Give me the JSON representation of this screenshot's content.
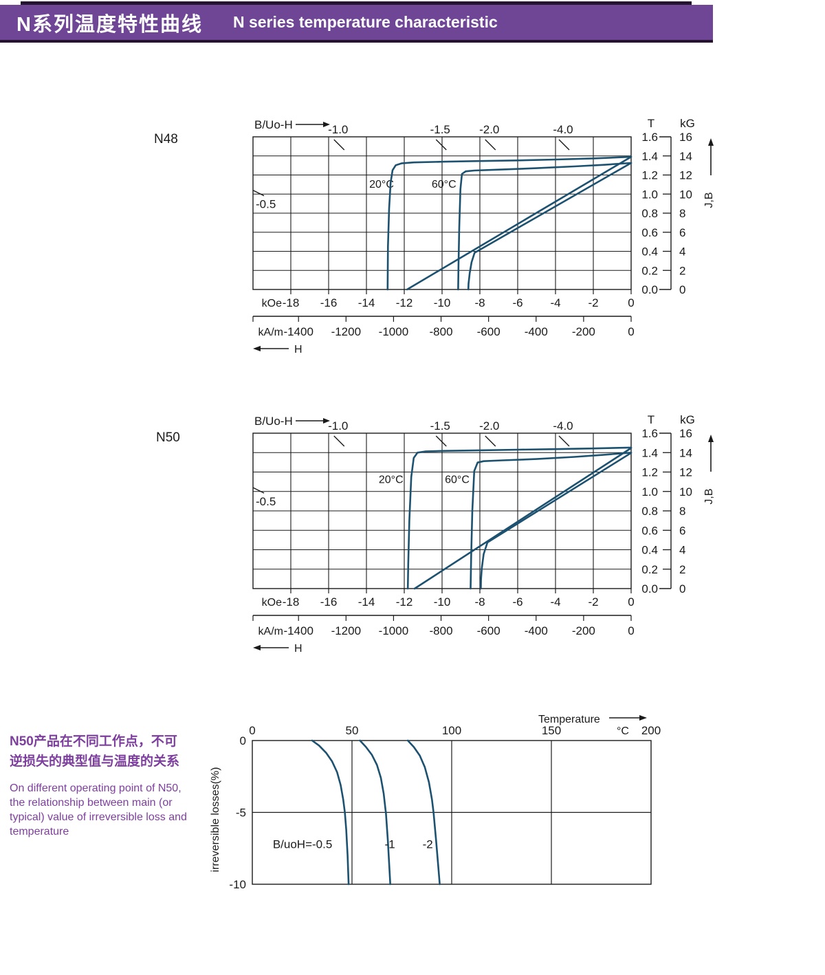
{
  "header": {
    "title_zh": "N系列温度特性曲线",
    "title_en": "N  series temperature characteristic"
  },
  "note": {
    "zh": [
      "N50产品在不同工作点，不可",
      "逆损失的典型值与温度的关系"
    ],
    "en": [
      "On different operating point of N50,",
      "the relationship between main (or",
      "typical) value of irreversible loss and",
      "temperature"
    ]
  },
  "colors": {
    "banner_bg": "#6f4595",
    "banner_edge": "#241430",
    "banner_text": "#ffffff",
    "note_text": "#7d3f9d",
    "curve": "#1c5170",
    "ink": "#1a1a1a"
  },
  "chart_data": [
    {
      "type": "line",
      "product": "N48",
      "title": "B/Uo-H",
      "x_axis": {
        "unit": "kOe",
        "range": [
          -20,
          0
        ],
        "ticks": [
          -18,
          -16,
          -14,
          -12,
          -10,
          -8,
          -6,
          -4,
          -2,
          0
        ]
      },
      "x_axis_secondary": {
        "unit": "kA/m",
        "ticks": [
          -1400,
          -1200,
          -1000,
          -800,
          -600,
          -400,
          -200,
          0
        ],
        "kAm_per_kOe": 79.577
      },
      "x_arrow_label": "H",
      "y_axis_T": {
        "unit": "T",
        "ticks": [
          "1.6",
          "1.4",
          "1.2",
          "1.0",
          "0.8",
          "0.6",
          "0.4",
          "0.2",
          "0.0"
        ],
        "range": [
          0,
          1.6
        ]
      },
      "y_axis_kG": {
        "unit": "kG",
        "ticks": [
          "16",
          "14",
          "12",
          "10",
          "8",
          "6",
          "4",
          "2",
          "0"
        ]
      },
      "y_arrow_label": "J,B",
      "load_line_labels_top": [
        {
          "text": "-1.0",
          "kOe": -15.5
        },
        {
          "text": "-1.5",
          "kOe": -10.1
        },
        {
          "text": "-2.0",
          "kOe": -7.5
        },
        {
          "text": "-4.0",
          "kOe": -3.6
        }
      ],
      "load_line_label_left": {
        "text": "-0.5",
        "T": 1.04
      },
      "temp_labels": [
        {
          "text": "20°C",
          "kOe": -13.2,
          "T": 1.11
        },
        {
          "text": "60°C",
          "kOe": -9.9,
          "T": 1.11
        }
      ],
      "series": [
        {
          "name": "J 20°C",
          "points": [
            [
              0,
              1.39
            ],
            [
              -2,
              1.374
            ],
            [
              -4,
              1.362
            ],
            [
              -6,
              1.353
            ],
            [
              -8,
              1.346
            ],
            [
              -10,
              1.339
            ],
            [
              -11.5,
              1.332
            ],
            [
              -12.15,
              1.322
            ],
            [
              -12.45,
              1.302
            ],
            [
              -12.62,
              1.25
            ],
            [
              -12.72,
              1.12
            ],
            [
              -12.8,
              0.85
            ],
            [
              -12.86,
              0.45
            ],
            [
              -12.88,
              0
            ]
          ]
        },
        {
          "name": "J 60°C",
          "points": [
            [
              0,
              1.326
            ],
            [
              -1.5,
              1.306
            ],
            [
              -3,
              1.29
            ],
            [
              -5,
              1.271
            ],
            [
              -7,
              1.256
            ],
            [
              -8.3,
              1.247
            ],
            [
              -8.75,
              1.238
            ],
            [
              -8.95,
              1.21
            ],
            [
              -9.03,
              1.05
            ],
            [
              -9.09,
              0.65
            ],
            [
              -9.13,
              0.25
            ],
            [
              -9.15,
              0
            ]
          ]
        },
        {
          "name": "B 20°C",
          "points": [
            [
              0,
              1.39
            ],
            [
              -11.85,
              0
            ]
          ]
        },
        {
          "name": "B 60°C",
          "points": [
            [
              0,
              1.326
            ],
            [
              -8.28,
              0.385
            ],
            [
              -8.44,
              0.285
            ],
            [
              -8.54,
              0.17
            ],
            [
              -8.6,
              0.06
            ],
            [
              -8.61,
              0
            ]
          ]
        }
      ]
    },
    {
      "type": "line",
      "product": "N50",
      "title": "B/Uo-H",
      "x_axis": {
        "unit": "kOe",
        "range": [
          -20,
          0
        ],
        "ticks": [
          -18,
          -16,
          -14,
          -12,
          -10,
          -8,
          -6,
          -4,
          -2,
          0
        ]
      },
      "x_axis_secondary": {
        "unit": "kA/m",
        "ticks": [
          -1400,
          -1200,
          -1000,
          -800,
          -600,
          -400,
          -200,
          0
        ],
        "kAm_per_kOe": 79.577
      },
      "x_arrow_label": "H",
      "y_axis_T": {
        "unit": "T",
        "ticks": [
          "1.6",
          "1.4",
          "1.2",
          "1.0",
          "0.8",
          "0.6",
          "0.4",
          "0.2",
          "0.0"
        ],
        "range": [
          0,
          1.6
        ]
      },
      "y_axis_kG": {
        "unit": "kG",
        "ticks": [
          "16",
          "14",
          "12",
          "10",
          "8",
          "6",
          "4",
          "2",
          "0"
        ]
      },
      "y_arrow_label": "J,B",
      "load_line_labels_top": [
        {
          "text": "-1.0",
          "kOe": -15.5
        },
        {
          "text": "-1.5",
          "kOe": -10.1
        },
        {
          "text": "-2.0",
          "kOe": -7.5
        },
        {
          "text": "-4.0",
          "kOe": -3.6
        }
      ],
      "load_line_label_left": {
        "text": "-0.5",
        "T": 1.04
      },
      "temp_labels": [
        {
          "text": "20°C",
          "kOe": -12.7,
          "T": 1.13
        },
        {
          "text": "60°C",
          "kOe": -9.2,
          "T": 1.13
        }
      ],
      "series": [
        {
          "name": "J 20°C",
          "points": [
            [
              0,
              1.452
            ],
            [
              -2,
              1.443
            ],
            [
              -4,
              1.436
            ],
            [
              -6,
              1.43
            ],
            [
              -8,
              1.424
            ],
            [
              -10,
              1.417
            ],
            [
              -10.9,
              1.412
            ],
            [
              -11.3,
              1.4
            ],
            [
              -11.5,
              1.345
            ],
            [
              -11.63,
              1.15
            ],
            [
              -11.73,
              0.7
            ],
            [
              -11.79,
              0.25
            ],
            [
              -11.81,
              0
            ]
          ]
        },
        {
          "name": "J 60°C",
          "points": [
            [
              0,
              1.4
            ],
            [
              -1.5,
              1.376
            ],
            [
              -3,
              1.356
            ],
            [
              -5,
              1.334
            ],
            [
              -6.8,
              1.32
            ],
            [
              -7.8,
              1.312
            ],
            [
              -8.12,
              1.298
            ],
            [
              -8.3,
              1.21
            ],
            [
              -8.4,
              0.8
            ],
            [
              -8.46,
              0.32
            ],
            [
              -8.49,
              0
            ]
          ]
        },
        {
          "name": "B 20°C",
          "points": [
            [
              0,
              1.447
            ],
            [
              -11.45,
              0
            ]
          ]
        },
        {
          "name": "B 60°C",
          "points": [
            [
              0,
              1.397
            ],
            [
              -7.6,
              0.475
            ],
            [
              -7.8,
              0.355
            ],
            [
              -7.9,
              0.21
            ],
            [
              -7.94,
              0.09
            ],
            [
              -7.95,
              0
            ]
          ]
        }
      ]
    },
    {
      "type": "line",
      "title": "irreversible losses vs temperature (N50)",
      "x_axis": {
        "unit": "°C",
        "range": [
          0,
          200
        ],
        "ticks": [
          0,
          50,
          100,
          150,
          200
        ]
      },
      "x_arrow_label": "Temperature",
      "y_axis": {
        "label": "irreversible  losses(%)",
        "range": [
          -10,
          0
        ],
        "ticks": [
          "0",
          "-5",
          "-10"
        ]
      },
      "series": [
        {
          "name": "B/uoH=-0.5",
          "points": [
            [
              30,
              0
            ],
            [
              33.5,
              -0.35
            ],
            [
              37,
              -0.85
            ],
            [
              40,
              -1.45
            ],
            [
              42.5,
              -2.2
            ],
            [
              44.3,
              -3.1
            ],
            [
              45.6,
              -4.1
            ],
            [
              46.4,
              -5
            ],
            [
              47.1,
              -6.2
            ],
            [
              47.8,
              -8
            ],
            [
              48.3,
              -10
            ]
          ]
        },
        {
          "name": "-1",
          "points": [
            [
              54,
              0
            ],
            [
              57,
              -0.45
            ],
            [
              60,
              -1.0
            ],
            [
              62.5,
              -1.7
            ],
            [
              64.5,
              -2.6
            ],
            [
              65.9,
              -3.7
            ],
            [
              66.8,
              -4.8
            ],
            [
              67.0,
              -5
            ],
            [
              68.0,
              -7
            ],
            [
              69.2,
              -10
            ]
          ]
        },
        {
          "name": "-2",
          "points": [
            [
              78,
              0
            ],
            [
              81,
              -0.45
            ],
            [
              84,
              -1.05
            ],
            [
              86.5,
              -1.85
            ],
            [
              88.6,
              -2.9
            ],
            [
              90.1,
              -4.1
            ],
            [
              90.9,
              -5
            ],
            [
              92.2,
              -7
            ],
            [
              93.4,
              -9
            ],
            [
              94,
              -10
            ]
          ]
        }
      ],
      "series_labels": [
        {
          "text": "B/uoH=-0.5",
          "T": 25.2,
          "loss": -7.2
        },
        {
          "text": "-1",
          "T": 69,
          "loss": -7.2
        },
        {
          "text": "-2",
          "T": 88,
          "loss": -7.2
        }
      ]
    }
  ]
}
